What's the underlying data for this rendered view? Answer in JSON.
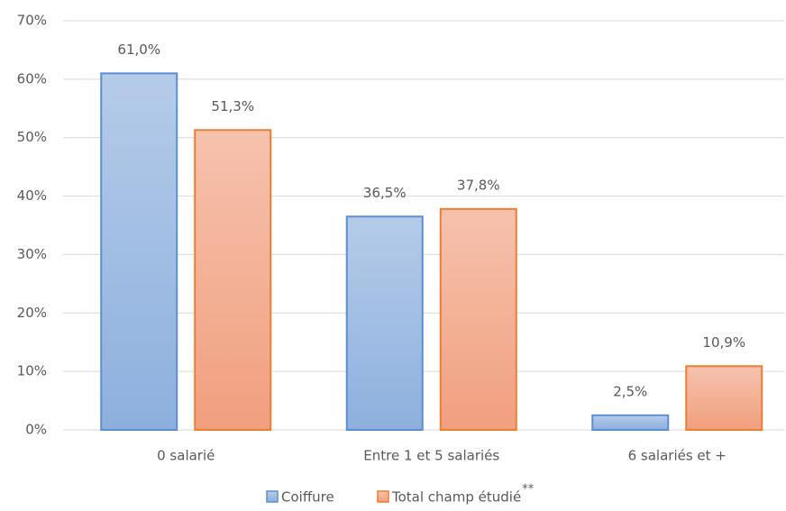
{
  "chart_data": {
    "type": "bar",
    "categories": [
      "0 salarié",
      "Entre 1 et 5 salariés",
      "6 salariés et +"
    ],
    "series": [
      {
        "name": "Coiffure",
        "color": "#5b8fd0",
        "values": [
          61.0,
          36.5,
          2.5
        ],
        "value_labels": [
          "61,0%",
          "36,5%",
          "2,5%"
        ]
      },
      {
        "name": "Total champ étudié",
        "color": "#ed7d31",
        "values": [
          51.3,
          37.8,
          10.9
        ],
        "value_labels": [
          "51,3%",
          "37,8%",
          "10,9%"
        ]
      }
    ],
    "legend_note": "**",
    "ylim": [
      0,
      70
    ],
    "yticks": [
      {
        "value": 0,
        "label": "0%"
      },
      {
        "value": 10,
        "label": "10%"
      },
      {
        "value": 20,
        "label": "20%"
      },
      {
        "value": 30,
        "label": "30%"
      },
      {
        "value": 40,
        "label": "40%"
      },
      {
        "value": 50,
        "label": "50%"
      },
      {
        "value": 60,
        "label": "60%"
      },
      {
        "value": 70,
        "label": "70%"
      }
    ],
    "grid": true,
    "legend": "bottom"
  }
}
